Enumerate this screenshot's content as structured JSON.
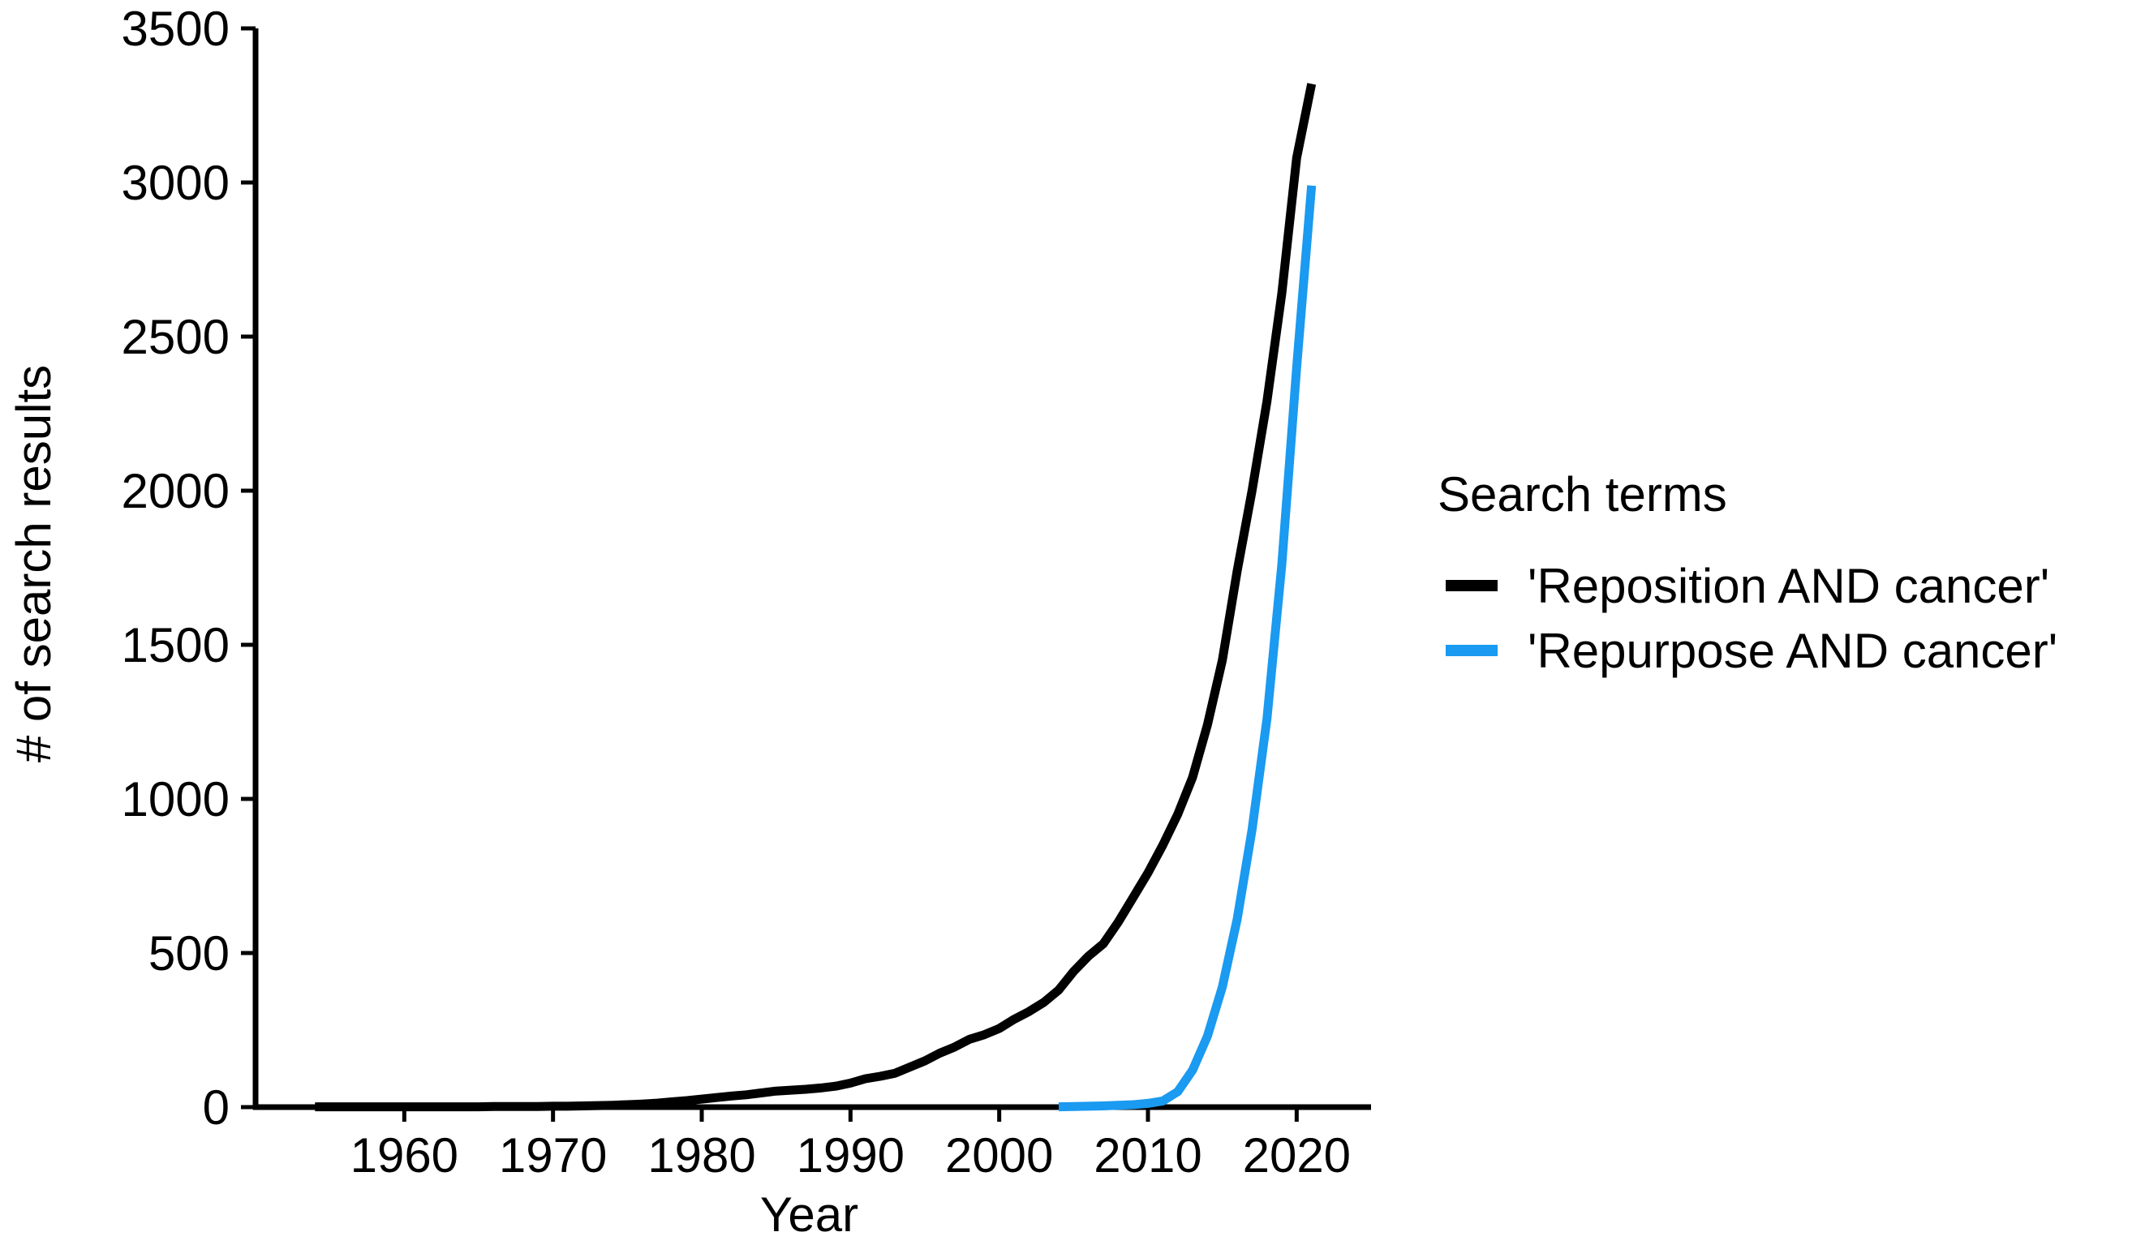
{
  "chart_data": {
    "type": "line",
    "xlabel": "Year",
    "ylabel": "# of search results",
    "xlim": [
      1950,
      2025
    ],
    "ylim": [
      0,
      3500
    ],
    "x_ticks": [
      1960,
      1970,
      1980,
      1990,
      2000,
      2010,
      2020
    ],
    "y_ticks": [
      0,
      500,
      1000,
      1500,
      2000,
      2500,
      3000,
      3500
    ],
    "grid": false,
    "legend": {
      "title": "Search terms",
      "placement": "right"
    },
    "series": [
      {
        "name": "'Reposition AND cancer'",
        "color": "#000000",
        "x": [
          1954,
          1955,
          1956,
          1957,
          1958,
          1959,
          1960,
          1961,
          1962,
          1963,
          1964,
          1965,
          1966,
          1967,
          1968,
          1969,
          1970,
          1971,
          1972,
          1973,
          1974,
          1975,
          1976,
          1977,
          1978,
          1979,
          1980,
          1981,
          1982,
          1983,
          1984,
          1985,
          1986,
          1987,
          1988,
          1989,
          1990,
          1991,
          1992,
          1993,
          1994,
          1995,
          1996,
          1997,
          1998,
          1999,
          2000,
          2001,
          2002,
          2003,
          2004,
          2005,
          2006,
          2007,
          2008,
          2009,
          2010,
          2011,
          2012,
          2013,
          2014,
          2015,
          2016,
          2017,
          2018,
          2019,
          2020,
          2021
        ],
        "y": [
          1,
          1,
          1,
          1,
          1,
          1,
          1,
          1,
          1,
          1,
          1,
          1,
          2,
          2,
          2,
          2,
          3,
          3,
          4,
          5,
          6,
          8,
          10,
          13,
          17,
          21,
          26,
          31,
          36,
          40,
          46,
          52,
          55,
          58,
          62,
          68,
          78,
          92,
          100,
          110,
          130,
          150,
          175,
          195,
          220,
          235,
          255,
          285,
          310,
          340,
          380,
          440,
          490,
          530,
          600,
          680,
          760,
          850,
          950,
          1070,
          1240,
          1450,
          1740,
          2000,
          2290,
          2640,
          3080,
          3320
        ]
      },
      {
        "name": "'Repurpose AND cancer'",
        "color": "#1a9af0",
        "x": [
          2004,
          2005,
          2006,
          2007,
          2008,
          2009,
          2010,
          2011,
          2012,
          2013,
          2014,
          2015,
          2016,
          2017,
          2018,
          2019,
          2020,
          2021
        ],
        "y": [
          1,
          2,
          3,
          4,
          6,
          8,
          12,
          20,
          50,
          120,
          230,
          390,
          610,
          900,
          1260,
          1760,
          2400,
          2990
        ]
      }
    ]
  }
}
